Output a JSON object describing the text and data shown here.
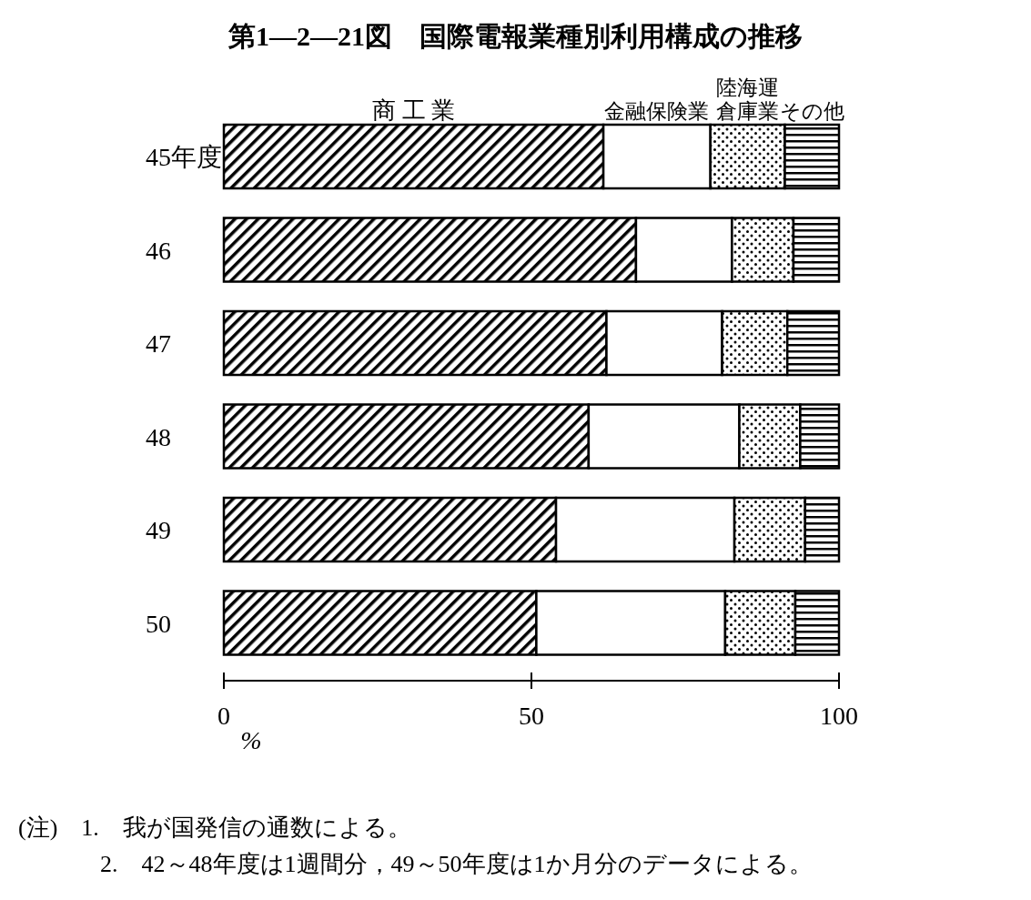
{
  "chart_data": {
    "type": "bar",
    "title": "第1—2—21図　国際電報業種別利用構成の推移",
    "orientation": "horizontal",
    "stacked": true,
    "legend": "top",
    "categories": [
      "45年度",
      "46",
      "47",
      "48",
      "49",
      "50"
    ],
    "series": [
      {
        "name": "商 工 業",
        "color": "#000000",
        "values": [
          61.7,
          67.0,
          62.2,
          59.3,
          54.0,
          50.8
        ]
      },
      {
        "name": "金融保険業",
        "color": "#ffffff",
        "values": [
          17.4,
          15.6,
          18.8,
          24.5,
          29.0,
          30.7
        ]
      },
      {
        "name": "陸海運倉庫業",
        "color": "#000000",
        "values": [
          12.1,
          10.0,
          10.6,
          9.9,
          11.5,
          11.4
        ]
      },
      {
        "name": "その他",
        "color": "#000000",
        "values": [
          8.8,
          7.4,
          8.4,
          6.3,
          5.5,
          7.1
        ]
      }
    ],
    "xlim": [
      0,
      100
    ],
    "xticks": [
      0,
      50,
      100
    ],
    "xlabel": "%",
    "annotations": [
      "(注)　1.　我が国発信の通数による。",
      "2.　42～48年度は1週間分，49～50年度は1か月分のデータによる。"
    ]
  }
}
